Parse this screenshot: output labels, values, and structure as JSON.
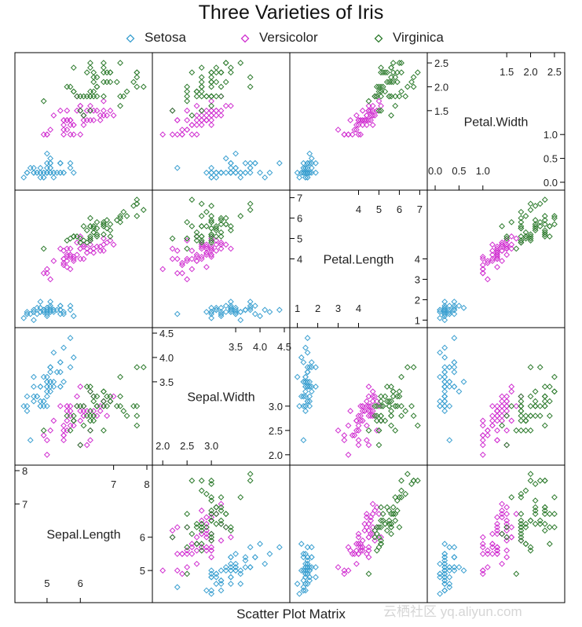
{
  "title": "Three Varieties of Iris",
  "subtitle": "Scatter Plot Matrix",
  "watermark": "云栖社区 yq.aliyun.com",
  "legend": [
    {
      "name": "Setosa",
      "color": "#3a9fd0"
    },
    {
      "name": "Versicolor",
      "color": "#d02fd0"
    },
    {
      "name": "Virginica",
      "color": "#2c7a2c"
    }
  ],
  "chart_data": {
    "type": "scatter",
    "title": "Three Varieties of Iris",
    "xlabel": "Scatter Plot Matrix",
    "variables": [
      "Sepal.Length",
      "Sepal.Width",
      "Petal.Length",
      "Petal.Width"
    ],
    "diag_ticks": {
      "Sepal.Length": {
        "lower": [
          5,
          6
        ],
        "upper": [
          7,
          8
        ],
        "left": [
          7,
          8
        ],
        "right": [
          5,
          6
        ]
      },
      "Sepal.Width": {
        "lower": [
          2.0,
          2.5,
          3.0
        ],
        "upper": [
          3.5,
          4.0,
          4.5
        ],
        "left": [
          3.5,
          4.0,
          4.5
        ],
        "right": [
          2.0,
          2.5,
          3.0
        ]
      },
      "Petal.Length": {
        "lower": [
          1,
          2,
          3,
          4
        ],
        "upper": [
          4,
          5,
          6,
          7
        ],
        "left": [
          4,
          5,
          6,
          7
        ],
        "right": [
          1,
          2,
          3,
          4
        ]
      },
      "Petal.Width": {
        "lower": [
          0.0,
          0.5,
          1.0
        ],
        "upper": [
          1.5,
          2.0,
          2.5
        ],
        "left": [
          1.5,
          2.0,
          2.5
        ],
        "right": [
          0.0,
          0.5,
          1.0
        ]
      }
    },
    "diag_tick_labels": {
      "Sepal.Length": {
        "lower": [
          "5",
          "6"
        ],
        "upper": [
          "7",
          "8"
        ],
        "left": [
          "7",
          "8"
        ],
        "right": [
          "5",
          "6"
        ]
      },
      "Sepal.Width": {
        "lower": [
          "2.0",
          "2.5",
          "3.0"
        ],
        "upper": [
          "3.5",
          "4.0",
          "4.5"
        ],
        "left": [
          "3.5",
          "4.0",
          "4.5"
        ],
        "right": [
          "2.0",
          "2.5",
          "3.0"
        ]
      },
      "Petal.Length": {
        "lower": [
          "1",
          "2",
          "3",
          "4"
        ],
        "upper": [
          "4",
          "5",
          "6",
          "7"
        ],
        "left": [
          "4",
          "5",
          "6",
          "7"
        ],
        "right": [
          "1",
          "2",
          "3",
          "4"
        ]
      },
      "Petal.Width": {
        "lower": [
          "0.0",
          "0.5",
          "1.0"
        ],
        "upper": [
          "1.5",
          "2.0",
          "2.5"
        ],
        "left": [
          "1.5",
          "2.0",
          "2.5"
        ],
        "right": [
          "0.0",
          "0.5",
          "1.0"
        ]
      }
    },
    "ranges": {
      "Sepal.Length": [
        4.2,
        8.0
      ],
      "Sepal.Width": [
        1.9,
        4.5
      ],
      "Petal.Length": [
        0.9,
        7.1
      ],
      "Petal.Width": [
        -0.05,
        2.6
      ]
    },
    "series": [
      {
        "name": "Setosa",
        "color": "#3a9fd0",
        "points": [
          [
            5.1,
            3.5,
            1.4,
            0.2
          ],
          [
            4.9,
            3.0,
            1.4,
            0.2
          ],
          [
            4.7,
            3.2,
            1.3,
            0.2
          ],
          [
            4.6,
            3.1,
            1.5,
            0.2
          ],
          [
            5.0,
            3.6,
            1.4,
            0.2
          ],
          [
            5.4,
            3.9,
            1.7,
            0.4
          ],
          [
            4.6,
            3.4,
            1.4,
            0.3
          ],
          [
            5.0,
            3.4,
            1.5,
            0.2
          ],
          [
            4.4,
            2.9,
            1.4,
            0.2
          ],
          [
            4.9,
            3.1,
            1.5,
            0.1
          ],
          [
            5.4,
            3.7,
            1.5,
            0.2
          ],
          [
            4.8,
            3.4,
            1.6,
            0.2
          ],
          [
            4.8,
            3.0,
            1.4,
            0.1
          ],
          [
            4.3,
            3.0,
            1.1,
            0.1
          ],
          [
            5.8,
            4.0,
            1.2,
            0.2
          ],
          [
            5.7,
            4.4,
            1.5,
            0.4
          ],
          [
            5.4,
            3.9,
            1.3,
            0.4
          ],
          [
            5.1,
            3.5,
            1.4,
            0.3
          ],
          [
            5.7,
            3.8,
            1.7,
            0.3
          ],
          [
            5.1,
            3.8,
            1.5,
            0.3
          ],
          [
            5.4,
            3.4,
            1.7,
            0.2
          ],
          [
            5.1,
            3.7,
            1.5,
            0.4
          ],
          [
            4.6,
            3.6,
            1.0,
            0.2
          ],
          [
            5.1,
            3.3,
            1.7,
            0.5
          ],
          [
            4.8,
            3.4,
            1.9,
            0.2
          ],
          [
            5.0,
            3.0,
            1.6,
            0.2
          ],
          [
            5.0,
            3.4,
            1.6,
            0.4
          ],
          [
            5.2,
            3.5,
            1.5,
            0.2
          ],
          [
            5.2,
            3.4,
            1.4,
            0.2
          ],
          [
            4.7,
            3.2,
            1.6,
            0.2
          ],
          [
            4.8,
            3.1,
            1.6,
            0.2
          ],
          [
            5.4,
            3.4,
            1.5,
            0.4
          ],
          [
            5.2,
            4.1,
            1.5,
            0.1
          ],
          [
            5.5,
            4.2,
            1.4,
            0.2
          ],
          [
            4.9,
            3.1,
            1.5,
            0.2
          ],
          [
            5.0,
            3.2,
            1.2,
            0.2
          ],
          [
            5.5,
            3.5,
            1.3,
            0.2
          ],
          [
            4.9,
            3.6,
            1.4,
            0.1
          ],
          [
            4.4,
            3.0,
            1.3,
            0.2
          ],
          [
            5.1,
            3.4,
            1.5,
            0.2
          ],
          [
            5.0,
            3.5,
            1.3,
            0.3
          ],
          [
            4.5,
            2.3,
            1.3,
            0.3
          ],
          [
            4.4,
            3.2,
            1.3,
            0.2
          ],
          [
            5.0,
            3.5,
            1.6,
            0.6
          ],
          [
            5.1,
            3.8,
            1.9,
            0.4
          ],
          [
            4.8,
            3.0,
            1.4,
            0.3
          ],
          [
            5.1,
            3.8,
            1.6,
            0.2
          ],
          [
            4.6,
            3.2,
            1.4,
            0.2
          ],
          [
            5.3,
            3.7,
            1.5,
            0.2
          ],
          [
            5.0,
            3.3,
            1.4,
            0.2
          ]
        ]
      },
      {
        "name": "Versicolor",
        "color": "#d02fd0",
        "points": [
          [
            7.0,
            3.2,
            4.7,
            1.4
          ],
          [
            6.4,
            3.2,
            4.5,
            1.5
          ],
          [
            6.9,
            3.1,
            4.9,
            1.5
          ],
          [
            5.5,
            2.3,
            4.0,
            1.3
          ],
          [
            6.5,
            2.8,
            4.6,
            1.5
          ],
          [
            5.7,
            2.8,
            4.5,
            1.3
          ],
          [
            6.3,
            3.3,
            4.7,
            1.6
          ],
          [
            4.9,
            2.4,
            3.3,
            1.0
          ],
          [
            6.6,
            2.9,
            4.6,
            1.3
          ],
          [
            5.2,
            2.7,
            3.9,
            1.4
          ],
          [
            5.0,
            2.0,
            3.5,
            1.0
          ],
          [
            5.9,
            3.0,
            4.2,
            1.5
          ],
          [
            6.0,
            2.2,
            4.0,
            1.0
          ],
          [
            6.1,
            2.9,
            4.7,
            1.4
          ],
          [
            5.6,
            2.9,
            3.6,
            1.3
          ],
          [
            6.7,
            3.1,
            4.4,
            1.4
          ],
          [
            5.6,
            3.0,
            4.5,
            1.5
          ],
          [
            5.8,
            2.7,
            4.1,
            1.0
          ],
          [
            6.2,
            2.2,
            4.5,
            1.5
          ],
          [
            5.6,
            2.5,
            3.9,
            1.1
          ],
          [
            5.9,
            3.2,
            4.8,
            1.8
          ],
          [
            6.1,
            2.8,
            4.0,
            1.3
          ],
          [
            6.3,
            2.5,
            4.9,
            1.5
          ],
          [
            6.1,
            2.8,
            4.7,
            1.2
          ],
          [
            6.4,
            2.9,
            4.3,
            1.3
          ],
          [
            6.6,
            3.0,
            4.4,
            1.4
          ],
          [
            6.8,
            2.8,
            4.8,
            1.4
          ],
          [
            6.7,
            3.0,
            5.0,
            1.7
          ],
          [
            6.0,
            2.9,
            4.5,
            1.5
          ],
          [
            5.7,
            2.6,
            3.5,
            1.0
          ],
          [
            5.5,
            2.4,
            3.8,
            1.1
          ],
          [
            5.5,
            2.4,
            3.7,
            1.0
          ],
          [
            5.8,
            2.7,
            3.9,
            1.2
          ],
          [
            6.0,
            2.7,
            5.1,
            1.6
          ],
          [
            5.4,
            3.0,
            4.5,
            1.5
          ],
          [
            6.0,
            3.4,
            4.5,
            1.6
          ],
          [
            6.7,
            3.1,
            4.7,
            1.5
          ],
          [
            6.3,
            2.3,
            4.4,
            1.3
          ],
          [
            5.6,
            3.0,
            4.1,
            1.3
          ],
          [
            5.5,
            2.5,
            4.0,
            1.3
          ],
          [
            5.5,
            2.6,
            4.4,
            1.2
          ],
          [
            6.1,
            3.0,
            4.6,
            1.4
          ],
          [
            5.8,
            2.6,
            4.0,
            1.2
          ],
          [
            5.0,
            2.3,
            3.3,
            1.0
          ],
          [
            5.6,
            2.7,
            4.2,
            1.3
          ],
          [
            5.7,
            3.0,
            4.2,
            1.2
          ],
          [
            5.7,
            2.9,
            4.2,
            1.3
          ],
          [
            6.2,
            2.9,
            4.3,
            1.3
          ],
          [
            5.1,
            2.5,
            3.0,
            1.1
          ],
          [
            5.7,
            2.8,
            4.1,
            1.3
          ]
        ]
      },
      {
        "name": "Virginica",
        "color": "#2c7a2c",
        "points": [
          [
            6.3,
            3.3,
            6.0,
            2.5
          ],
          [
            5.8,
            2.7,
            5.1,
            1.9
          ],
          [
            7.1,
            3.0,
            5.9,
            2.1
          ],
          [
            6.3,
            2.9,
            5.6,
            1.8
          ],
          [
            6.5,
            3.0,
            5.8,
            2.2
          ],
          [
            7.6,
            3.0,
            6.6,
            2.1
          ],
          [
            4.9,
            2.5,
            4.5,
            1.7
          ],
          [
            7.3,
            2.9,
            6.3,
            1.8
          ],
          [
            6.7,
            2.5,
            5.8,
            1.8
          ],
          [
            7.2,
            3.6,
            6.1,
            2.5
          ],
          [
            6.5,
            3.2,
            5.1,
            2.0
          ],
          [
            6.4,
            2.7,
            5.3,
            1.9
          ],
          [
            6.8,
            3.0,
            5.5,
            2.1
          ],
          [
            5.7,
            2.5,
            5.0,
            2.0
          ],
          [
            5.8,
            2.8,
            5.1,
            2.4
          ],
          [
            6.4,
            3.2,
            5.3,
            2.3
          ],
          [
            6.5,
            3.0,
            5.5,
            1.8
          ],
          [
            7.7,
            3.8,
            6.7,
            2.2
          ],
          [
            7.7,
            2.6,
            6.9,
            2.3
          ],
          [
            6.0,
            2.2,
            5.0,
            1.5
          ],
          [
            6.9,
            3.2,
            5.7,
            2.3
          ],
          [
            5.6,
            2.8,
            4.9,
            2.0
          ],
          [
            7.7,
            2.8,
            6.7,
            2.0
          ],
          [
            6.3,
            2.7,
            4.9,
            1.8
          ],
          [
            6.7,
            3.3,
            5.7,
            2.1
          ],
          [
            7.2,
            3.2,
            6.0,
            1.8
          ],
          [
            6.2,
            2.8,
            4.8,
            1.8
          ],
          [
            6.1,
            3.0,
            4.9,
            1.8
          ],
          [
            6.4,
            2.8,
            5.6,
            2.1
          ],
          [
            7.2,
            3.0,
            5.8,
            1.6
          ],
          [
            7.4,
            2.8,
            6.1,
            1.9
          ],
          [
            7.9,
            3.8,
            6.4,
            2.0
          ],
          [
            6.4,
            2.8,
            5.6,
            2.2
          ],
          [
            6.3,
            2.8,
            5.1,
            1.5
          ],
          [
            6.1,
            2.6,
            5.6,
            1.4
          ],
          [
            7.7,
            3.0,
            6.1,
            2.3
          ],
          [
            6.3,
            3.4,
            5.6,
            2.4
          ],
          [
            6.4,
            3.1,
            5.5,
            1.8
          ],
          [
            6.0,
            3.0,
            4.8,
            1.8
          ],
          [
            6.9,
            3.1,
            5.4,
            2.1
          ],
          [
            6.7,
            3.1,
            5.6,
            2.4
          ],
          [
            6.9,
            3.1,
            5.1,
            2.3
          ],
          [
            5.8,
            2.7,
            5.1,
            1.9
          ],
          [
            6.8,
            3.2,
            5.9,
            2.3
          ],
          [
            6.7,
            3.3,
            5.7,
            2.5
          ],
          [
            6.7,
            3.0,
            5.2,
            2.3
          ],
          [
            6.3,
            2.5,
            5.0,
            1.9
          ],
          [
            6.5,
            3.0,
            5.2,
            2.0
          ],
          [
            6.2,
            3.4,
            5.4,
            2.3
          ],
          [
            5.9,
            3.0,
            5.1,
            1.8
          ]
        ]
      }
    ]
  }
}
